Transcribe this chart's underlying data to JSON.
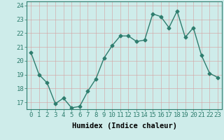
{
  "title": "",
  "xlabel": "Humidex (Indice chaleur)",
  "ylabel": "",
  "x_values": [
    0,
    1,
    2,
    3,
    4,
    5,
    6,
    7,
    8,
    9,
    10,
    11,
    12,
    13,
    14,
    15,
    16,
    17,
    18,
    19,
    20,
    21,
    22,
    23
  ],
  "y_values": [
    20.6,
    19.0,
    18.4,
    16.9,
    17.3,
    16.6,
    16.7,
    17.8,
    18.7,
    20.2,
    21.1,
    21.8,
    21.8,
    21.4,
    21.5,
    23.4,
    23.2,
    22.4,
    23.6,
    21.7,
    22.4,
    20.4,
    19.1,
    18.8
  ],
  "line_color": "#2e7d6e",
  "marker": "D",
  "marker_size": 2.5,
  "bg_color": "#ceecea",
  "grid_color": "#b8d8d5",
  "axis_label_fontsize": 7.5,
  "tick_fontsize": 6.5,
  "ylim": [
    16.5,
    24.3
  ],
  "yticks": [
    17,
    18,
    19,
    20,
    21,
    22,
    23,
    24
  ],
  "line_width": 1.0
}
